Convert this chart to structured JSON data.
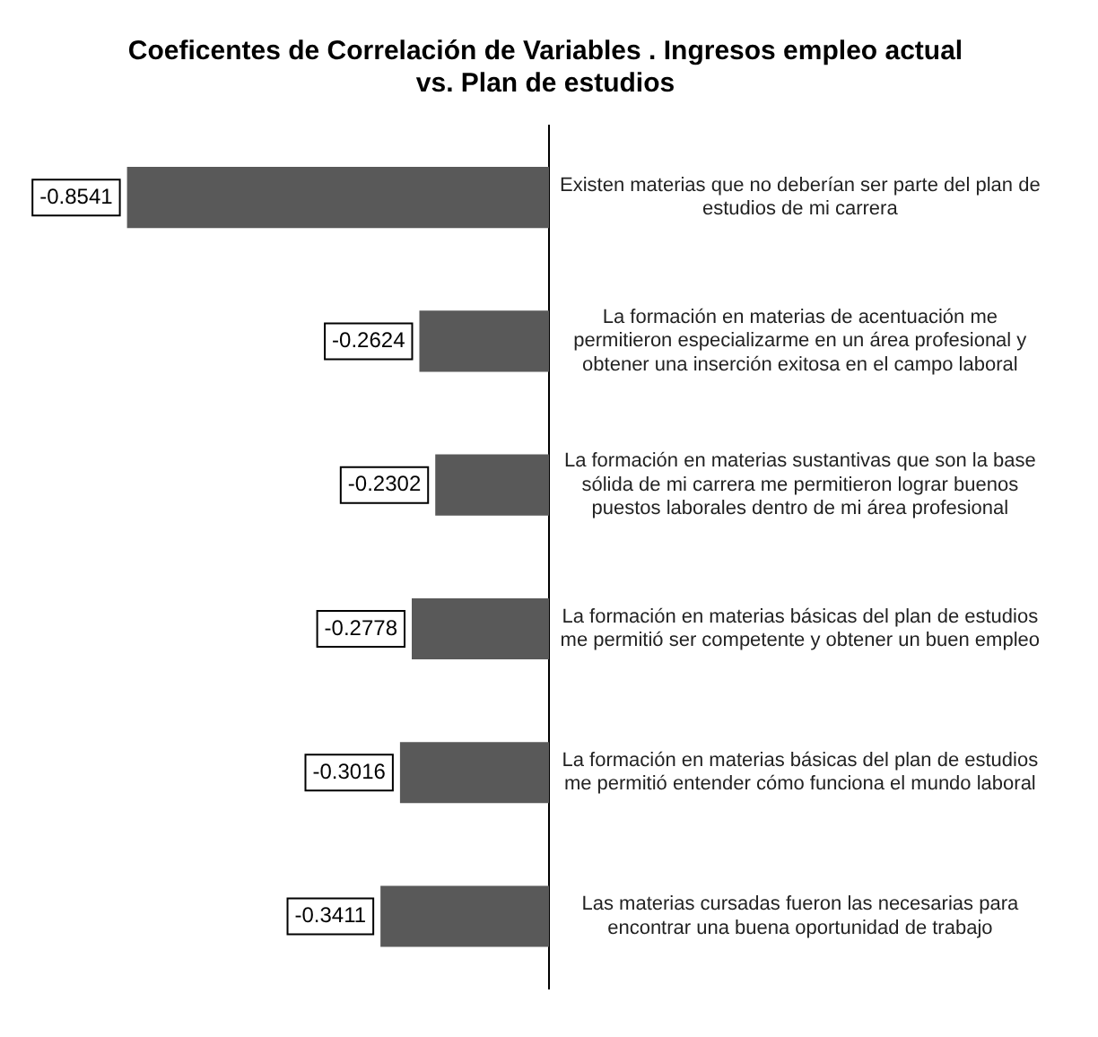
{
  "chart_data": {
    "type": "bar",
    "orientation": "horizontal",
    "title": "Coeficentes de Correlación de Variables . Ingresos empleo actual vs. Plan de estudios",
    "categories": [
      "Existen materias que no deberían ser parte del plan de estudios de mi carrera",
      "La formación en materias de acentuación me permitieron especializarme en un área profesional y obtener una inserción exitosa en el campo laboral",
      "La formación en materias sustantivas que son la base sólida de mi carrera me permitieron lograr buenos puestos laborales dentro de mi área profesional",
      "La formación en materias básicas del plan de estudios me permitió ser competente y obtener un buen empleo",
      "La formación en materias básicas del plan de estudios me permitió entender cómo funciona el mundo laboral",
      "Las materias cursadas fueron las necesarias para encontrar una buena oportunidad de trabajo"
    ],
    "values": [
      -0.8541,
      -0.2624,
      -0.2302,
      -0.2778,
      -0.3016,
      -0.3411
    ],
    "color": "#595959",
    "data_labels": true,
    "legend": false
  }
}
